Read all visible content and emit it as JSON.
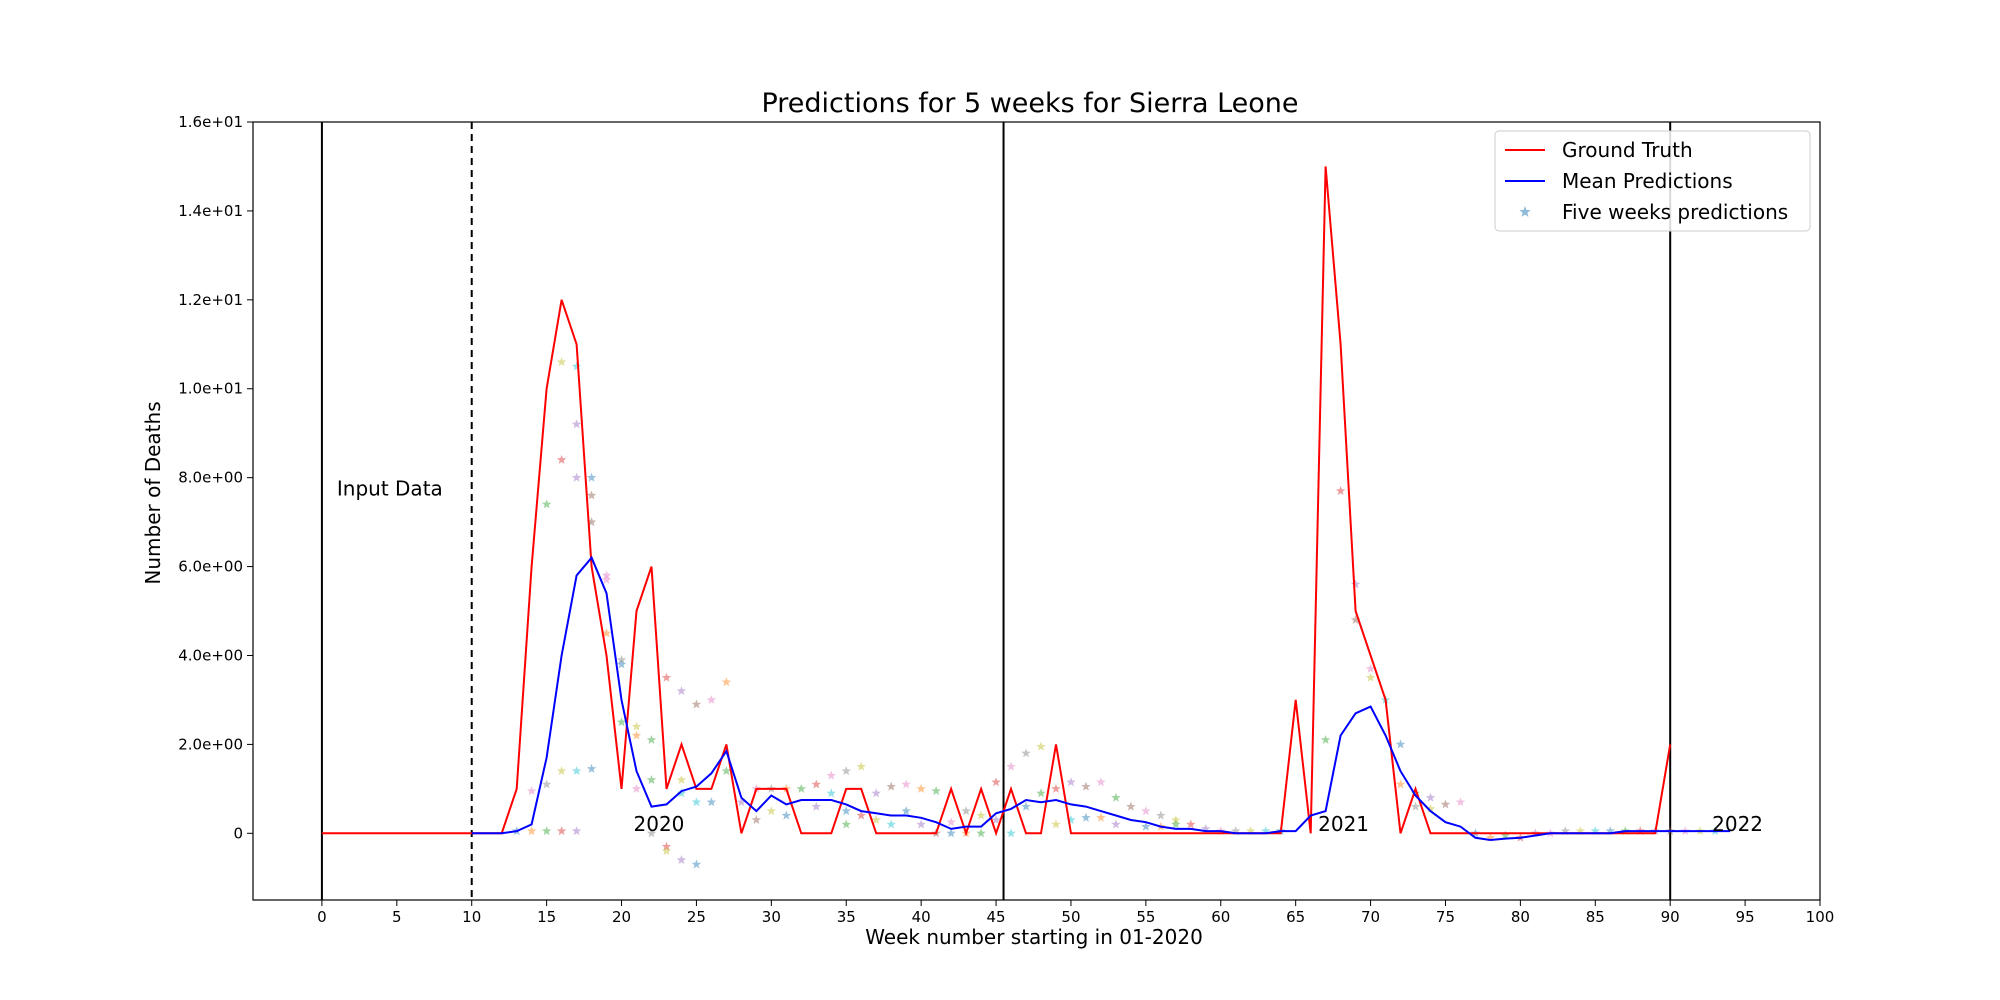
{
  "chart_data": {
    "type": "line",
    "title": "Predictions for 5 weeks for Sierra Leone",
    "xlabel": "Week number starting in 01-2020",
    "ylabel": "Number of Deaths",
    "xlim": [
      -4.6,
      100
    ],
    "ylim": [
      -1.5,
      16
    ],
    "xticks": [
      0,
      5,
      10,
      15,
      20,
      25,
      30,
      35,
      40,
      45,
      50,
      55,
      60,
      65,
      70,
      75,
      80,
      85,
      90,
      95,
      100
    ],
    "xtick_labels": [
      "0",
      "5",
      "10",
      "15",
      "20",
      "25",
      "30",
      "35",
      "40",
      "45",
      "50",
      "55",
      "60",
      "65",
      "70",
      "75",
      "80",
      "85",
      "90",
      "95",
      "100"
    ],
    "yticks": [
      0,
      2,
      4,
      6,
      8,
      10,
      12,
      14,
      16
    ],
    "ytick_labels": [
      "0",
      "2.0e+00",
      "4.0e+00",
      "6.0e+00",
      "8.0e+00",
      "1.0e+01",
      "1.2e+01",
      "1.4e+01",
      "1.6e+01"
    ],
    "grid": false,
    "legend_position": "top-right",
    "colors": {
      "ground_truth": "#ff0000",
      "mean_predictions": "#0000ff",
      "five_weeks": "#1f77b4"
    },
    "vlines": [
      {
        "x": 0,
        "style": "solid"
      },
      {
        "x": 10,
        "style": "dashed"
      },
      {
        "x": 45.5,
        "style": "solid"
      },
      {
        "x": 90,
        "style": "solid"
      }
    ],
    "annotations": [
      {
        "text": "Input Data",
        "x": 1,
        "y": 7.6
      },
      {
        "text": "2020",
        "x": 20.8,
        "y": 0.05
      },
      {
        "text": "2021",
        "x": 66.5,
        "y": 0.05
      },
      {
        "text": "2022",
        "x": 92.8,
        "y": 0.05
      }
    ],
    "series": [
      {
        "name": "Ground Truth",
        "kind": "line",
        "x": [
          0,
          1,
          2,
          3,
          4,
          5,
          6,
          7,
          8,
          9,
          10,
          11,
          12,
          13,
          14,
          15,
          16,
          17,
          18,
          19,
          20,
          21,
          22,
          23,
          24,
          25,
          26,
          27,
          28,
          29,
          30,
          31,
          32,
          33,
          34,
          35,
          36,
          37,
          38,
          39,
          40,
          41,
          42,
          43,
          44,
          45,
          46,
          47,
          48,
          49,
          50,
          51,
          52,
          53,
          54,
          55,
          56,
          57,
          58,
          59,
          60,
          61,
          62,
          63,
          64,
          65,
          66,
          67,
          68,
          69,
          70,
          71,
          72,
          73,
          74,
          75,
          76,
          77,
          78,
          79,
          80,
          81,
          82,
          83,
          84,
          85,
          86,
          87,
          88,
          89,
          90
        ],
        "values": [
          0,
          0,
          0,
          0,
          0,
          0,
          0,
          0,
          0,
          0,
          0,
          0,
          0,
          1,
          6,
          10,
          12,
          11,
          6,
          4,
          1,
          5,
          6,
          1,
          2,
          1,
          1,
          2,
          0,
          1,
          1,
          1,
          0,
          0,
          0,
          1,
          1,
          0,
          0,
          0,
          0,
          0,
          1,
          0,
          1,
          0,
          1,
          0,
          0,
          2,
          0,
          0,
          0,
          0,
          0,
          0,
          0,
          0,
          0,
          0,
          0,
          0,
          0,
          0,
          0,
          3,
          0,
          15,
          11,
          5,
          4,
          3,
          0,
          1,
          0,
          0,
          0,
          0,
          0,
          0,
          0,
          0,
          0,
          0,
          0,
          0,
          0,
          0,
          0,
          0,
          2
        ]
      },
      {
        "name": "Mean Predictions",
        "kind": "line",
        "x": [
          10,
          11,
          12,
          13,
          14,
          15,
          16,
          17,
          18,
          19,
          20,
          21,
          22,
          23,
          24,
          25,
          26,
          27,
          28,
          29,
          30,
          31,
          32,
          33,
          34,
          35,
          36,
          37,
          38,
          39,
          40,
          41,
          42,
          43,
          44,
          45,
          46,
          47,
          48,
          49,
          50,
          51,
          52,
          53,
          54,
          55,
          56,
          57,
          58,
          59,
          60,
          61,
          62,
          63,
          64,
          65,
          66,
          67,
          68,
          69,
          70,
          71,
          72,
          73,
          74,
          75,
          76,
          77,
          78,
          79,
          80,
          81,
          82,
          83,
          84,
          85,
          86,
          87,
          88,
          89,
          90,
          91,
          92,
          93,
          94
        ],
        "values": [
          0,
          0,
          0,
          0.05,
          0.2,
          1.7,
          4.0,
          5.8,
          6.2,
          5.4,
          3.0,
          1.4,
          0.6,
          0.65,
          0.95,
          1.05,
          1.35,
          1.85,
          0.8,
          0.5,
          0.85,
          0.65,
          0.75,
          0.75,
          0.75,
          0.65,
          0.5,
          0.45,
          0.4,
          0.4,
          0.35,
          0.25,
          0.1,
          0.15,
          0.15,
          0.45,
          0.55,
          0.75,
          0.7,
          0.75,
          0.65,
          0.6,
          0.5,
          0.4,
          0.3,
          0.25,
          0.15,
          0.1,
          0.1,
          0.05,
          0.05,
          0.0,
          0.0,
          0.0,
          0.05,
          0.05,
          0.4,
          0.5,
          2.2,
          2.7,
          2.85,
          2.2,
          1.4,
          0.85,
          0.5,
          0.25,
          0.15,
          -0.1,
          -0.15,
          -0.12,
          -0.1,
          -0.05,
          0.0,
          0.0,
          0.0,
          0.0,
          0.0,
          0.05,
          0.05,
          0.05,
          0.05,
          0.05,
          0.05,
          0.05,
          0.05
        ]
      },
      {
        "name": "Five weeks predictions",
        "kind": "scatter",
        "marker": "star",
        "points": [
          [
            13,
            0.05
          ],
          [
            14,
            0.05
          ],
          [
            15,
            0.05
          ],
          [
            16,
            0.05
          ],
          [
            17,
            0.05
          ],
          [
            14,
            0.95
          ],
          [
            15,
            1.1
          ],
          [
            16,
            1.4
          ],
          [
            17,
            1.4
          ],
          [
            18,
            1.45
          ],
          [
            15,
            7.4
          ],
          [
            16,
            8.4
          ],
          [
            17,
            8.0
          ],
          [
            18,
            7.6
          ],
          [
            19,
            5.8
          ],
          [
            16,
            10.6
          ],
          [
            17,
            10.5
          ],
          [
            18,
            8.0
          ],
          [
            19,
            4.5
          ],
          [
            20,
            2.5
          ],
          [
            17,
            9.2
          ],
          [
            18,
            7.0
          ],
          [
            19,
            5.7
          ],
          [
            20,
            3.9
          ],
          [
            21,
            2.4
          ],
          [
            20,
            3.8
          ],
          [
            21,
            2.2
          ],
          [
            22,
            1.2
          ],
          [
            23,
            -0.3
          ],
          [
            24,
            -0.6
          ],
          [
            21,
            1.0
          ],
          [
            22,
            0.0
          ],
          [
            23,
            -0.4
          ],
          [
            24,
            0.9
          ],
          [
            25,
            -0.7
          ],
          [
            22,
            2.1
          ],
          [
            23,
            3.5
          ],
          [
            24,
            3.2
          ],
          [
            25,
            2.9
          ],
          [
            26,
            3.0
          ],
          [
            24,
            1.2
          ],
          [
            25,
            0.7
          ],
          [
            26,
            0.7
          ],
          [
            27,
            3.4
          ],
          [
            27,
            1.4
          ],
          [
            28,
            0.7
          ],
          [
            29,
            0.3
          ],
          [
            29,
            1.0
          ],
          [
            30,
            1.0
          ],
          [
            30,
            0.5
          ],
          [
            31,
            0.4
          ],
          [
            31,
            1.0
          ],
          [
            32,
            1.0
          ],
          [
            33,
            1.1
          ],
          [
            33,
            0.6
          ],
          [
            34,
            1.3
          ],
          [
            35,
            1.4
          ],
          [
            36,
            1.5
          ],
          [
            34,
            0.9
          ],
          [
            35,
            0.5
          ],
          [
            35,
            0.2
          ],
          [
            36,
            0.4
          ],
          [
            37,
            0.9
          ],
          [
            38,
            1.05
          ],
          [
            39,
            1.1
          ],
          [
            37,
            0.3
          ],
          [
            38,
            0.2
          ],
          [
            39,
            0.5
          ],
          [
            40,
            1.0
          ],
          [
            41,
            0.95
          ],
          [
            40,
            0.2
          ],
          [
            41,
            0.0
          ],
          [
            42,
            0.25
          ],
          [
            43,
            0.5
          ],
          [
            44,
            0.4
          ],
          [
            42,
            0.0
          ],
          [
            43,
            0.0
          ],
          [
            44,
            0.0
          ],
          [
            45,
            1.15
          ],
          [
            45,
            0.3
          ],
          [
            46,
            1.5
          ],
          [
            47,
            1.8
          ],
          [
            48,
            1.95
          ],
          [
            46,
            0.0
          ],
          [
            47,
            0.6
          ],
          [
            48,
            0.9
          ],
          [
            49,
            1.0
          ],
          [
            50,
            1.15
          ],
          [
            51,
            1.05
          ],
          [
            52,
            1.15
          ],
          [
            49,
            0.2
          ],
          [
            50,
            0.3
          ],
          [
            51,
            0.35
          ],
          [
            52,
            0.35
          ],
          [
            53,
            0.8
          ],
          [
            53,
            0.2
          ],
          [
            54,
            0.6
          ],
          [
            55,
            0.5
          ],
          [
            56,
            0.4
          ],
          [
            57,
            0.3
          ],
          [
            55,
            0.15
          ],
          [
            56,
            0.15
          ],
          [
            57,
            0.2
          ],
          [
            58,
            0.2
          ],
          [
            59,
            0.1
          ],
          [
            60,
            0.05
          ],
          [
            61,
            0.05
          ],
          [
            62,
            0.05
          ],
          [
            63,
            0.05
          ],
          [
            64,
            0.05
          ],
          [
            67,
            2.1
          ],
          [
            68,
            7.7
          ],
          [
            69,
            5.6
          ],
          [
            69,
            4.8
          ],
          [
            70,
            3.7
          ],
          [
            70,
            3.5
          ],
          [
            71,
            3.0
          ],
          [
            72,
            2.0
          ],
          [
            72,
            1.1
          ],
          [
            73,
            0.9
          ],
          [
            74,
            0.8
          ],
          [
            75,
            0.65
          ],
          [
            76,
            0.7
          ],
          [
            73,
            0.6
          ],
          [
            74,
            0.55
          ],
          [
            77,
            0.0
          ],
          [
            78,
            -0.1
          ],
          [
            79,
            -0.05
          ],
          [
            80,
            -0.1
          ],
          [
            81,
            0.0
          ],
          [
            82,
            0.0
          ],
          [
            83,
            0.05
          ],
          [
            84,
            0.05
          ],
          [
            85,
            0.05
          ],
          [
            86,
            0.05
          ],
          [
            87,
            0.05
          ],
          [
            88,
            0.05
          ],
          [
            89,
            0.05
          ],
          [
            90,
            0.05
          ],
          [
            91,
            0.05
          ],
          [
            92,
            0.05
          ],
          [
            93,
            0.05
          ]
        ]
      }
    ]
  }
}
